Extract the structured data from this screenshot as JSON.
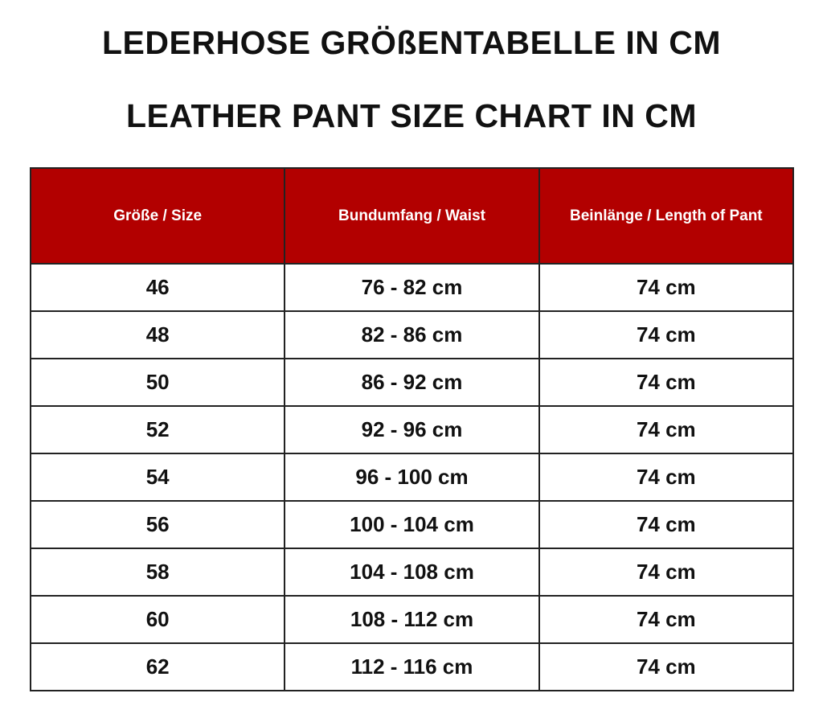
{
  "header": {
    "title": "LEDERHOSE GRÖßENTABELLE IN CM",
    "subtitle": "LEATHER PANT SIZE CHART IN CM"
  },
  "table": {
    "columns": [
      "Größe / Size",
      "Bundumfang / Waist",
      "Beinlänge / Length of Pant"
    ],
    "rows": [
      [
        "46",
        "76 - 82 cm",
        "74 cm"
      ],
      [
        "48",
        "82 - 86 cm",
        "74 cm"
      ],
      [
        "50",
        "86 - 92 cm",
        "74 cm"
      ],
      [
        "52",
        "92 - 96 cm",
        "74 cm"
      ],
      [
        "54",
        "96 - 100 cm",
        "74 cm"
      ],
      [
        "56",
        "100 - 104 cm",
        "74 cm"
      ],
      [
        "58",
        "104 - 108 cm",
        "74 cm"
      ],
      [
        "60",
        "108 - 112 cm",
        "74 cm"
      ],
      [
        "62",
        "112 - 116 cm",
        "74 cm"
      ]
    ]
  }
}
